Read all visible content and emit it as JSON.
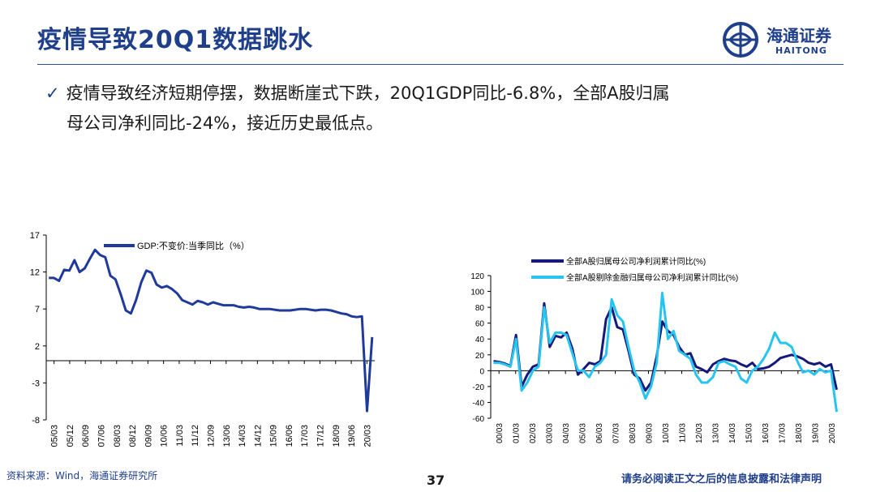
{
  "slide": {
    "title": "疫情导致20Q1数据跳水",
    "bullet_line1": "疫情导致经济短期停摆，数据断崖式下跌，20Q1GDP同比-6.8%，全部A股归属",
    "bullet_line2": "母公司净利同比-24%，接近历史最低点。",
    "page_number": "37"
  },
  "logo": {
    "cn_text": "海通证券",
    "en_text": "HAITONG"
  },
  "footer": {
    "source": "资料来源：Wind，海通证券研究所",
    "disclaimer": "请务必阅读正文之后的信息披露和法律声明"
  },
  "colors": {
    "title": "#1f3f8a",
    "gdp_line": "#1f3a9a",
    "dark_navy": "#14197a",
    "light_cyan": "#27c4f0"
  },
  "chart_data": [
    {
      "type": "line",
      "title": "",
      "xlabel": "",
      "ylabel": "",
      "ylim": [
        -8,
        17
      ],
      "yticks": [
        17,
        12,
        7,
        2,
        -3,
        -8
      ],
      "xtick_labels": [
        "05/03",
        "05/12",
        "06/09",
        "07/06",
        "08/03",
        "08/12",
        "09/09",
        "10/06",
        "11/03",
        "11/12",
        "12/09",
        "13/06",
        "14/03",
        "14/12",
        "15/09",
        "16/06",
        "17/03",
        "17/12",
        "18/09",
        "19/06",
        "20/03"
      ],
      "grid": false,
      "legend_position": "top-left",
      "series": [
        {
          "name": "GDP:不变价:当季同比（%）",
          "color": "#1f3a9a",
          "values": [
            11.2,
            11.2,
            10.8,
            12.3,
            12.2,
            13.6,
            12.0,
            12.5,
            13.8,
            15.0,
            14.3,
            14.0,
            11.5,
            11.0,
            9.0,
            6.8,
            6.4,
            8.2,
            10.6,
            12.2,
            11.9,
            10.3,
            9.9,
            10.1,
            9.7,
            9.1,
            8.2,
            7.9,
            7.6,
            8.1,
            7.9,
            7.6,
            7.9,
            7.7,
            7.5,
            7.5,
            7.5,
            7.3,
            7.2,
            7.3,
            7.2,
            7.0,
            7.0,
            7.0,
            6.9,
            6.8,
            6.8,
            6.8,
            6.9,
            7.0,
            7.0,
            6.9,
            6.8,
            6.9,
            6.9,
            6.8,
            6.6,
            6.4,
            6.3,
            6.0,
            5.9,
            6.0,
            -6.8,
            3.2
          ]
        }
      ]
    },
    {
      "type": "line",
      "title": "",
      "xlabel": "",
      "ylabel": "",
      "ylim": [
        -60,
        120
      ],
      "yticks": [
        120,
        100,
        80,
        60,
        40,
        20,
        0,
        -20,
        -40,
        -60
      ],
      "xtick_labels": [
        "00/03",
        "01/03",
        "02/03",
        "03/03",
        "04/03",
        "05/03",
        "06/03",
        "07/03",
        "08/03",
        "09/03",
        "10/03",
        "11/03",
        "12/03",
        "13/03",
        "14/03",
        "15/03",
        "16/03",
        "17/03",
        "18/03",
        "19/03",
        "20/03"
      ],
      "grid": false,
      "legend_position": "top",
      "series": [
        {
          "name": "全部A股归属母公司净利润累计同比(%)",
          "color": "#14197a",
          "values": [
            12,
            11,
            9,
            6,
            45,
            -20,
            -5,
            5,
            8,
            85,
            30,
            44,
            42,
            48,
            28,
            -5,
            2,
            10,
            8,
            12,
            65,
            80,
            55,
            52,
            25,
            -5,
            -10,
            -25,
            -15,
            18,
            62,
            50,
            45,
            30,
            20,
            22,
            5,
            2,
            -2,
            8,
            12,
            15,
            13,
            12,
            8,
            5,
            10,
            2,
            3,
            5,
            10,
            16,
            18,
            20,
            18,
            15,
            10,
            8,
            10,
            5,
            8,
            -24
          ]
        },
        {
          "name": "全部A股剔除金融归属母公司净利润累计同比(%)",
          "color": "#27c4f0",
          "values": [
            10,
            10,
            8,
            5,
            40,
            -25,
            -15,
            0,
            5,
            80,
            35,
            48,
            48,
            45,
            22,
            0,
            0,
            -8,
            5,
            10,
            20,
            90,
            70,
            62,
            30,
            0,
            -15,
            -35,
            -20,
            10,
            98,
            40,
            50,
            25,
            20,
            15,
            -5,
            -15,
            -15,
            -8,
            10,
            12,
            8,
            5,
            -10,
            -15,
            0,
            5,
            15,
            28,
            48,
            35,
            35,
            30,
            12,
            -2,
            0,
            -5,
            2,
            -2,
            0,
            -52
          ]
        }
      ]
    }
  ]
}
